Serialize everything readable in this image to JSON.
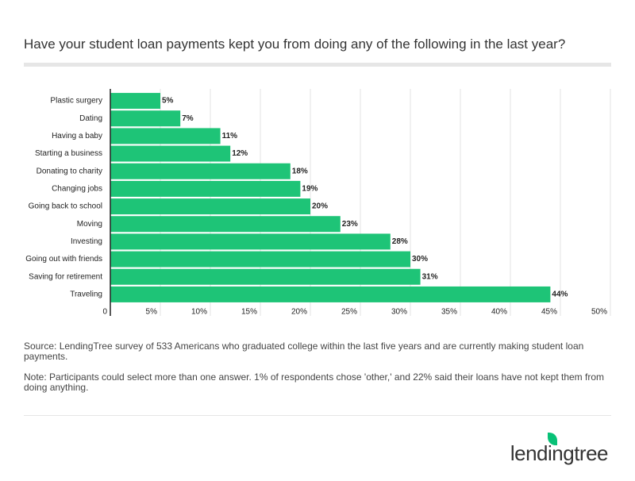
{
  "chart_data": {
    "type": "bar",
    "orientation": "horizontal",
    "title": "Have your student loan payments kept you from doing any of the following in the last year?",
    "categories": [
      "Plastic surgery",
      "Dating",
      "Having a baby",
      "Starting a business",
      "Donating to charity",
      "Changing jobs",
      "Going back to school",
      "Moving",
      "Investing",
      "Going out with friends",
      "Saving for retirement",
      "Traveling"
    ],
    "values": [
      5,
      7,
      11,
      12,
      18,
      19,
      20,
      23,
      28,
      30,
      31,
      44
    ],
    "value_labels": [
      "5%",
      "7%",
      "11%",
      "12%",
      "18%",
      "19%",
      "20%",
      "23%",
      "28%",
      "30%",
      "31%",
      "44%"
    ],
    "color": "#1ec477",
    "xlim": [
      0,
      50
    ],
    "xticks": [
      0,
      {
        "value": 5,
        "label": "5%"
      },
      {
        "value": 10,
        "label": "10%"
      },
      {
        "value": 15,
        "label": "15%"
      },
      {
        "value": 20,
        "label": "20%"
      },
      {
        "value": 25,
        "label": "25%"
      },
      {
        "value": 30,
        "label": "30%"
      },
      {
        "value": 35,
        "label": "35%"
      },
      {
        "value": 40,
        "label": "40%"
      },
      {
        "value": 45,
        "label": "45%"
      },
      {
        "value": 50,
        "label": "50%"
      }
    ],
    "grid": true,
    "source": "Source: LendingTree survey of 533 Americans who graduated college within the last five years and are currently making student loan payments.",
    "note": "Note: Participants could select more than one answer. 1% of respondents chose 'other,' and 22% said their loans have not kept them from doing anything."
  },
  "logo": "lendingtree"
}
